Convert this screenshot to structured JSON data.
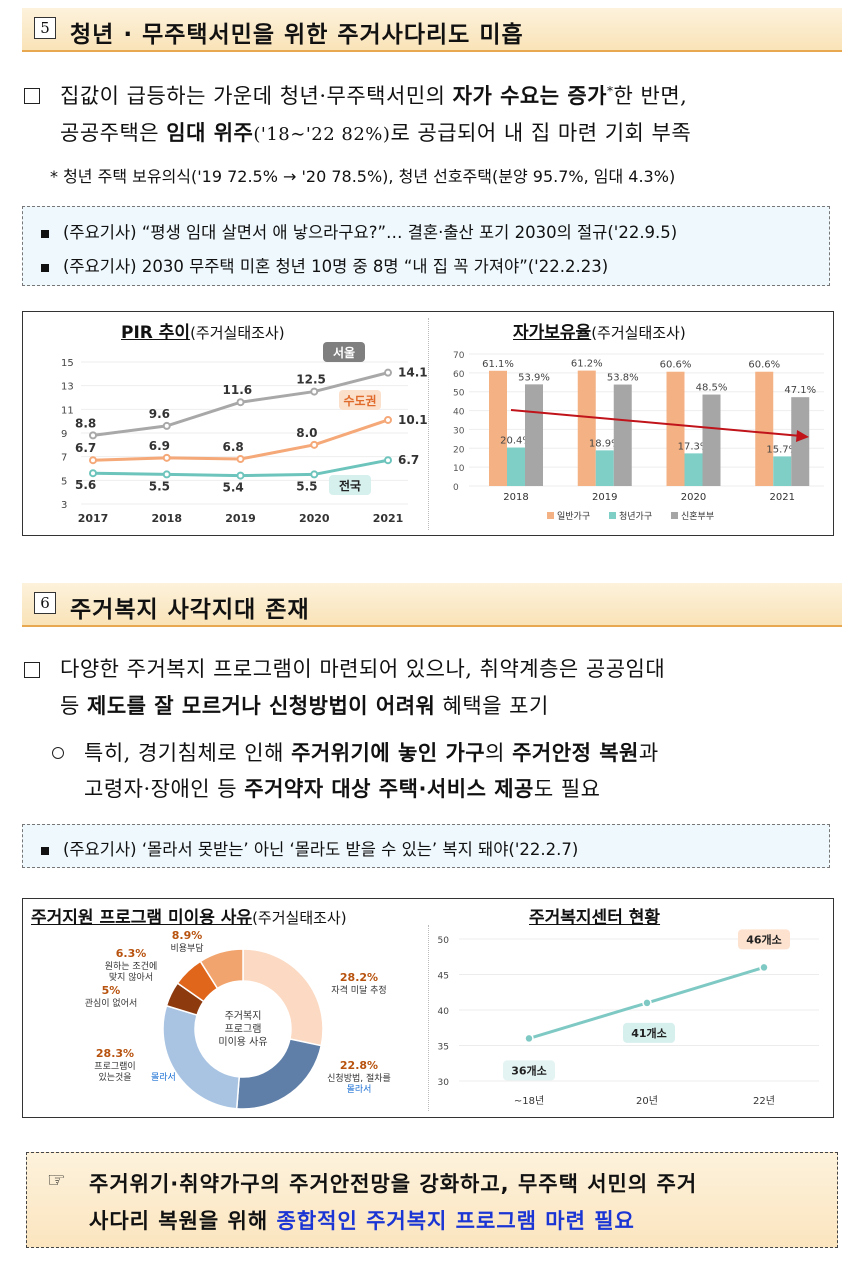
{
  "section5": {
    "num": "5",
    "title": "청년 · 무주택서민을 위한 주거사다리도 미흡",
    "p1": {
      "a": "집값이 급등하는 가운데 청년·무주택서민의 ",
      "b": "자가 수요는 증가",
      "c": "*",
      "d": "한 반면,"
    },
    "p2": {
      "a": "공공주택은 ",
      "b": "임대 위주",
      "c": "('18∼'22 82%)",
      "d": "로 공급되어 내 집 마련 기회 부족"
    },
    "note": "* 청년 주택 보유의식('19 72.5% → '20 78.5%), 청년 선호주택(분양 95.7%, 임대 4.3%)",
    "news": [
      "(주요기사) “평생 임대 살면서 애 낳으라구요?”… 결혼·출산 포기 2030의 절규('22.9.5)",
      "(주요기사) 2030 무주택 미혼 청년 10명 중 8명 “내 집 꼭 가져야”('22.2.23)"
    ]
  },
  "section6": {
    "num": "6",
    "title": "주거복지 사각지대 존재",
    "p1": "다양한 주거복지 프로그램이 마련되어 있으나, 취약계층은 공공임대",
    "p2": {
      "a": "등 ",
      "b": "제도를 잘 모르거나 신청방법이 어려워",
      "c": " 혜택을 포기"
    },
    "p3": {
      "a": "특히, 경기침체로 인해 ",
      "b": "주거위기에 놓인 가구",
      "c": "의 ",
      "d": "주거안정 복원",
      "e": "과"
    },
    "p4": {
      "a": "고령자·장애인 등 ",
      "b": "주거약자 대상 주택·서비스 제공",
      "c": "도 필요"
    },
    "news": "(주요기사) ‘몰라서 못받는’ 아닌 ‘몰라도 받을 수 있는’ 복지 돼야('22.2.7)"
  },
  "final": {
    "icon": "☞",
    "l1": "주거위기·취약가구의 주거안전망을 강화하고, 무주택 서민의 주거",
    "l2a": "사다리 복원을 위해 ",
    "l2b": "종합적인 주거복지 프로그램 마련 필요"
  },
  "chart_data": [
    {
      "type": "line",
      "title": "PIR 추이",
      "subtitle": "(주거실태조사)",
      "x": [
        "2017",
        "2018",
        "2019",
        "2020",
        "2021"
      ],
      "ylim": [
        3,
        15
      ],
      "yticks": [
        "3",
        "5",
        "7",
        "9",
        "11",
        "13",
        "15"
      ],
      "series": [
        {
          "name": "서울",
          "values": [
            8.8,
            9.6,
            11.6,
            12.5,
            14.1
          ],
          "labels": [
            "8.8",
            "9.6",
            "11.6",
            "12.5",
            "14.1"
          ],
          "color": "#a8a8a8"
        },
        {
          "name": "수도권",
          "values": [
            6.7,
            6.9,
            6.8,
            8.0,
            10.1
          ],
          "labels": [
            "6.7",
            "6.9",
            "6.8",
            "8.0",
            "10.1"
          ],
          "color": "#f5a878"
        },
        {
          "name": "전국",
          "values": [
            5.6,
            5.5,
            5.4,
            5.5,
            6.7
          ],
          "labels": [
            "5.6",
            "5.5",
            "5.4",
            "5.5",
            "6.7"
          ],
          "color": "#6cc4bc"
        }
      ]
    },
    {
      "type": "bar",
      "title": "자가보유율",
      "subtitle": "(주거실태조사)",
      "categories": [
        "2018",
        "2019",
        "2020",
        "2021"
      ],
      "ylim": [
        0,
        70
      ],
      "yticks": [
        "0",
        "10",
        "20",
        "30",
        "40",
        "50",
        "60",
        "70"
      ],
      "series": [
        {
          "name": "일반가구",
          "values": [
            61.1,
            61.2,
            60.6,
            60.6
          ],
          "labels": [
            "61.1%",
            "61.2%",
            "60.6%",
            "60.6%"
          ],
          "color": "#f4b183"
        },
        {
          "name": "청년가구",
          "values": [
            20.4,
            18.9,
            17.3,
            15.7
          ],
          "labels": [
            "20.4%",
            "18.9%",
            "17.3%",
            "15.7%"
          ],
          "color": "#7fcfc7"
        },
        {
          "name": "신혼부부",
          "values": [
            53.9,
            53.8,
            48.5,
            47.1
          ],
          "labels": [
            "53.9%",
            "53.8%",
            "48.5%",
            "47.1%"
          ],
          "color": "#a6a6a6"
        }
      ]
    },
    {
      "type": "pie",
      "title": "주거지원 프로그램 미이용 사유",
      "subtitle": "(주거실태조사)",
      "center": [
        "주거복지",
        "프로그램",
        "미이용 사유"
      ],
      "slices": [
        {
          "value": 28.2,
          "pct": "28.2%",
          "label": [
            "자격 미달 추정"
          ],
          "color": "#fbd9c2"
        },
        {
          "value": 22.8,
          "pct": "22.8%",
          "label": [
            "신청방법, 절차를"
          ],
          "highlight": "몰라서",
          "color": "#5f7fa8"
        },
        {
          "value": 28.3,
          "pct": "28.3%",
          "label": [
            "프로그램이",
            "있는것을"
          ],
          "highlight": "몰라서",
          "color": "#a9c4e2"
        },
        {
          "value": 5,
          "pct": "5%",
          "label": [
            "관심이 없어서"
          ],
          "color": "#8c3a0e"
        },
        {
          "value": 6.3,
          "pct": "6.3%",
          "label": [
            "원하는 조건에",
            "맞지 않아서"
          ],
          "color": "#e0661c"
        },
        {
          "value": 8.9,
          "pct": "8.9%",
          "label": [
            "비용부담"
          ],
          "color": "#f2a46e"
        }
      ]
    },
    {
      "type": "line",
      "title": "주거복지센터 현황",
      "x": [
        "~18년",
        "20년",
        "22년"
      ],
      "ylim": [
        30,
        50
      ],
      "yticks": [
        "30",
        "35",
        "40",
        "45",
        "50"
      ],
      "series": [
        {
          "values": [
            36,
            41,
            46
          ],
          "labels": [
            "36개소",
            "41개소",
            "46개소"
          ],
          "color": "#7fc9c4"
        }
      ]
    }
  ]
}
